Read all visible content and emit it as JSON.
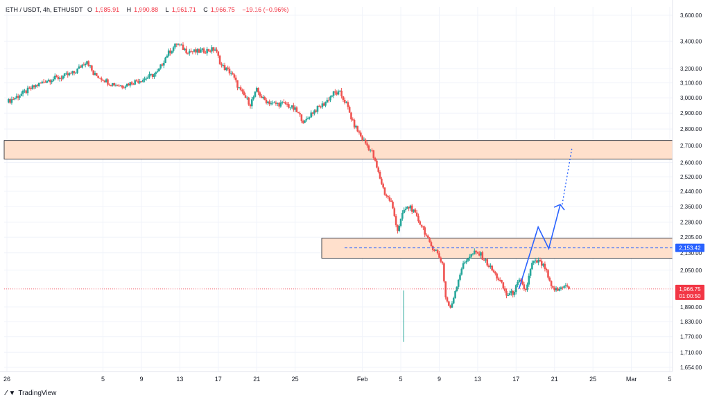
{
  "header": {
    "symbol": "ETH / USDT, 4h, ETHUSDT",
    "open_label": "O",
    "open": "1,985.91",
    "high_label": "H",
    "high": "1,990.88",
    "low_label": "L",
    "low": "1,961.71",
    "close_label": "C",
    "close": "1,966.75",
    "change": "−19.16 (−0.96%)"
  },
  "branding": {
    "logo_text": "TradingView",
    "logo_icon": "tradingview-logo-icon"
  },
  "colors": {
    "up": "#26a69a",
    "down": "#ef5350",
    "zone_fill": "#ffe0cc",
    "projection": "#2962ff",
    "last_price": "#f23645",
    "level_line": "#2962ff"
  },
  "chart_data": {
    "type": "candlestick",
    "y_scale": "log",
    "y_ticks": [
      "3,600.00",
      "3,400.00",
      "3,200.00",
      "3,100.00",
      "3,000.00",
      "2,900.00",
      "2,800.00",
      "2,700.00",
      "2,600.00",
      "2,520.00",
      "2,440.00",
      "2,360.00",
      "2,280.00",
      "2,205.00",
      "2,130.00",
      "2,050.00",
      "1,890.00",
      "1,830.00",
      "1,770.00",
      "1,710.00",
      "1,654.00"
    ],
    "y_tick_values": [
      3600,
      3400,
      3200,
      3100,
      3000,
      2900,
      2800,
      2700,
      2600,
      2520,
      2440,
      2360,
      2280,
      2205,
      2130,
      2050,
      1890,
      1830,
      1770,
      1710,
      1654
    ],
    "x_ticks": [
      "26",
      "5",
      "9",
      "13",
      "17",
      "21",
      "25",
      "Feb",
      "5",
      "9",
      "13",
      "17",
      "21",
      "25",
      "Mar",
      "5"
    ],
    "ohlc_anchors": [
      {
        "t": 0,
        "c": 2970
      },
      {
        "t": 18,
        "c": 3080
      },
      {
        "t": 25,
        "c": 3120
      },
      {
        "t": 34,
        "c": 3140
      },
      {
        "t": 42,
        "c": 3170
      },
      {
        "t": 50,
        "c": 3260
      },
      {
        "t": 54,
        "c": 3160
      },
      {
        "t": 58,
        "c": 3140
      },
      {
        "t": 64,
        "c": 3100
      },
      {
        "t": 72,
        "c": 3080
      },
      {
        "t": 80,
        "c": 3110
      },
      {
        "t": 86,
        "c": 3130
      },
      {
        "t": 94,
        "c": 3170
      },
      {
        "t": 100,
        "c": 3300
      },
      {
        "t": 106,
        "c": 3380
      },
      {
        "t": 112,
        "c": 3330
      },
      {
        "t": 118,
        "c": 3320
      },
      {
        "t": 124,
        "c": 3330
      },
      {
        "t": 130,
        "c": 3340
      },
      {
        "t": 134,
        "c": 3220
      },
      {
        "t": 140,
        "c": 3170
      },
      {
        "t": 146,
        "c": 3040
      },
      {
        "t": 152,
        "c": 2960
      },
      {
        "t": 156,
        "c": 3050
      },
      {
        "t": 160,
        "c": 2990
      },
      {
        "t": 166,
        "c": 2960
      },
      {
        "t": 174,
        "c": 2960
      },
      {
        "t": 180,
        "c": 2920
      },
      {
        "t": 186,
        "c": 2840
      },
      {
        "t": 190,
        "c": 2900
      },
      {
        "t": 198,
        "c": 2960
      },
      {
        "t": 204,
        "c": 3030
      },
      {
        "t": 208,
        "c": 3030
      },
      {
        "t": 212,
        "c": 2960
      },
      {
        "t": 216,
        "c": 2840
      },
      {
        "t": 222,
        "c": 2740
      },
      {
        "t": 228,
        "c": 2660
      },
      {
        "t": 232,
        "c": 2540
      },
      {
        "t": 236,
        "c": 2430
      },
      {
        "t": 240,
        "c": 2380
      },
      {
        "t": 244,
        "c": 2240
      },
      {
        "t": 248,
        "c": 2340
      },
      {
        "t": 252,
        "c": 2360
      },
      {
        "t": 256,
        "c": 2300
      },
      {
        "t": 260,
        "c": 2250
      },
      {
        "t": 264,
        "c": 2170
      },
      {
        "t": 268,
        "c": 2140
      },
      {
        "t": 272,
        "c": 2080
      },
      {
        "t": 274,
        "c": 1930
      },
      {
        "t": 277,
        "c": 1880
      },
      {
        "t": 280,
        "c": 1960
      },
      {
        "t": 284,
        "c": 2060
      },
      {
        "t": 288,
        "c": 2110
      },
      {
        "t": 292,
        "c": 2130
      },
      {
        "t": 296,
        "c": 2120
      },
      {
        "t": 300,
        "c": 2080
      },
      {
        "t": 304,
        "c": 2040
      },
      {
        "t": 308,
        "c": 2000
      },
      {
        "t": 312,
        "c": 1940
      },
      {
        "t": 316,
        "c": 1950
      },
      {
        "t": 320,
        "c": 2000
      },
      {
        "t": 324,
        "c": 1960
      },
      {
        "t": 328,
        "c": 2080
      },
      {
        "t": 332,
        "c": 2090
      },
      {
        "t": 336,
        "c": 2060
      },
      {
        "t": 340,
        "c": 1970
      },
      {
        "t": 344,
        "c": 1960
      },
      {
        "t": 348,
        "c": 1985
      },
      {
        "t": 351,
        "c": 1966.75
      }
    ],
    "zones": [
      {
        "label": "resistance-zone",
        "low": 2620,
        "high": 2730
      },
      {
        "label": "breakdown-zone",
        "low": 2105,
        "high": 2200
      }
    ],
    "horizontal_levels": [
      {
        "label": "2,153.42",
        "value": 2153.42,
        "style": "dashed"
      }
    ],
    "last_price": {
      "value": "1,966.75",
      "countdown": "01:00:50",
      "price": 1966.75
    },
    "projection_path": [
      {
        "date": "Feb 17",
        "price": 1966.75
      },
      {
        "date": "Feb 19",
        "price": 2255
      },
      {
        "date": "Feb 20",
        "price": 2150
      },
      {
        "date": "Feb 21",
        "price": 2370
      },
      {
        "date": "Feb 21",
        "price": 2350
      },
      {
        "date": "Feb 22",
        "price": 2390
      }
    ],
    "projection_dotted": [
      {
        "date": "Feb 21",
        "price": 2370
      },
      {
        "date": "Feb 22",
        "price": 2680
      }
    ]
  }
}
